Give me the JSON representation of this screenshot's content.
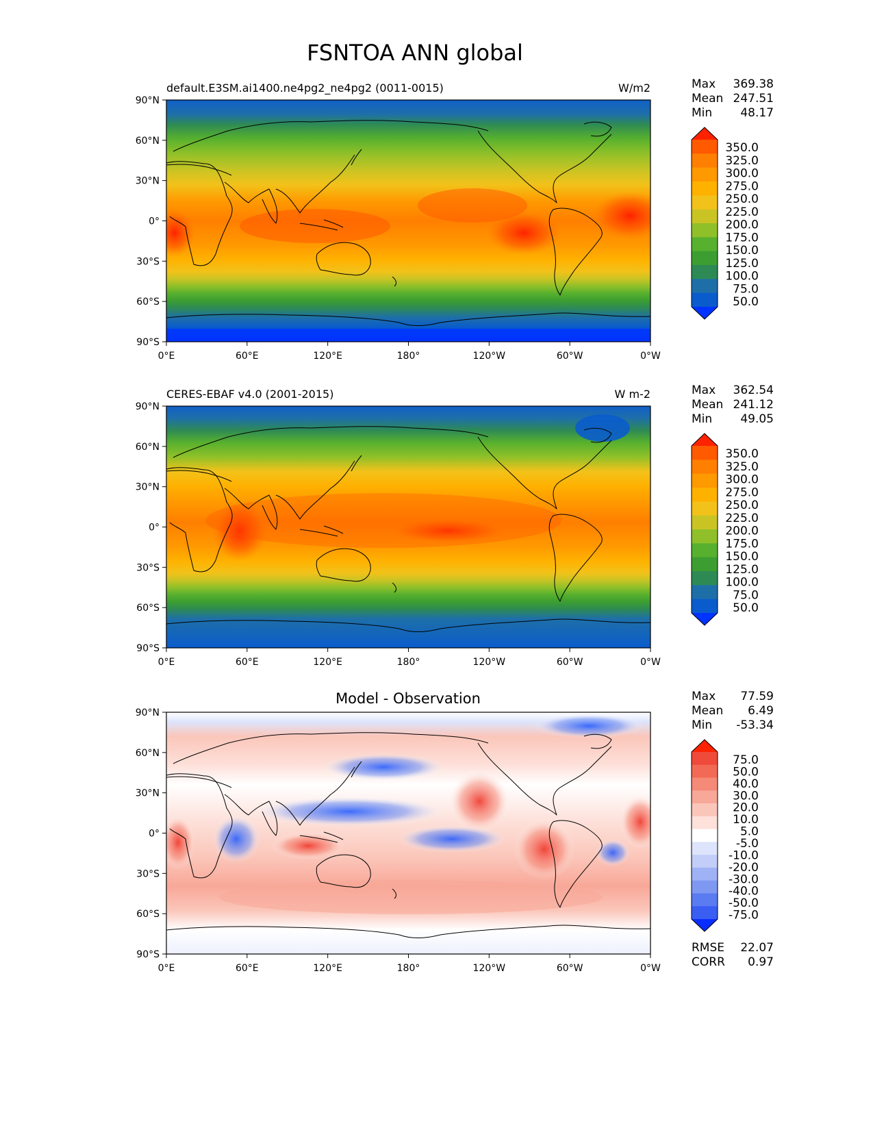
{
  "page_title": "FSNTOA ANN global",
  "chart_data": [
    {
      "type": "heatmap",
      "panel": "test",
      "title": "default.E3SM.ai1400.ne4pg2_ne4pg2 (0011-0015)",
      "units": "W/m2",
      "ytick_labels": [
        "90°N",
        "60°N",
        "30°N",
        "0°",
        "30°S",
        "60°S",
        "90°S"
      ],
      "xtick_labels": [
        "0°E",
        "60°E",
        "120°E",
        "180°",
        "120°W",
        "60°W",
        "0°W"
      ],
      "stats": [
        {
          "label": "Max",
          "value": "369.38"
        },
        {
          "label": "Mean",
          "value": "247.51"
        },
        {
          "label": "Min",
          "value": "48.17"
        }
      ],
      "colorbar": {
        "levels": [
          "350.0",
          "325.0",
          "300.0",
          "275.0",
          "250.0",
          "225.0",
          "200.0",
          "175.0",
          "150.0",
          "125.0",
          "100.0",
          "75.0",
          "50.0"
        ],
        "colors": [
          "#ff2200",
          "#ff5a00",
          "#ff7f00",
          "#ff9900",
          "#ffb100",
          "#f2c21a",
          "#c9c424",
          "#8fc029",
          "#57b02e",
          "#3c9e31",
          "#2e8a55",
          "#1e6fa8",
          "#0a5ccc",
          "#0033ff"
        ]
      }
    },
    {
      "type": "heatmap",
      "panel": "reference",
      "title": "CERES-EBAF v4.0 (2001-2015)",
      "units": "W m-2",
      "ytick_labels": [
        "90°N",
        "60°N",
        "30°N",
        "0°",
        "30°S",
        "60°S",
        "90°S"
      ],
      "xtick_labels": [
        "0°E",
        "60°E",
        "120°E",
        "180°",
        "120°W",
        "60°W",
        "0°W"
      ],
      "stats": [
        {
          "label": "Max",
          "value": "362.54"
        },
        {
          "label": "Mean",
          "value": "241.12"
        },
        {
          "label": "Min",
          "value": "49.05"
        }
      ],
      "colorbar": {
        "levels": [
          "350.0",
          "325.0",
          "300.0",
          "275.0",
          "250.0",
          "225.0",
          "200.0",
          "175.0",
          "150.0",
          "125.0",
          "100.0",
          "75.0",
          "50.0"
        ],
        "colors": [
          "#ff2200",
          "#ff5a00",
          "#ff7f00",
          "#ff9900",
          "#ffb100",
          "#f2c21a",
          "#c9c424",
          "#8fc029",
          "#57b02e",
          "#3c9e31",
          "#2e8a55",
          "#1e6fa8",
          "#0a5ccc",
          "#0033ff"
        ]
      }
    },
    {
      "type": "heatmap",
      "panel": "difference",
      "title": "Model - Observation",
      "units": "",
      "ytick_labels": [
        "90°N",
        "60°N",
        "30°N",
        "0°",
        "30°S",
        "60°S",
        "90°S"
      ],
      "xtick_labels": [
        "0°E",
        "60°E",
        "120°E",
        "180°",
        "120°W",
        "60°W",
        "0°W"
      ],
      "stats": [
        {
          "label": "Max",
          "value": "77.59"
        },
        {
          "label": "Mean",
          "value": "6.49"
        },
        {
          "label": "Min",
          "value": "-53.34"
        }
      ],
      "extra_stats": [
        {
          "label": "RMSE",
          "value": "22.07"
        },
        {
          "label": "CORR",
          "value": "0.97"
        }
      ],
      "colorbar": {
        "levels": [
          "75.0",
          "50.0",
          "40.0",
          "30.0",
          "20.0",
          "10.0",
          "5.0",
          "-5.0",
          "-10.0",
          "-20.0",
          "-30.0",
          "-40.0",
          "-50.0",
          "-75.0"
        ],
        "colors": [
          "#ff2200",
          "#f04a3a",
          "#f26a55",
          "#f58a78",
          "#f8a898",
          "#fbc6ba",
          "#fde1da",
          "#ffffff",
          "#dde4fb",
          "#c2cdf8",
          "#9fb2f5",
          "#7f98f2",
          "#5a7cf0",
          "#3a5ef2",
          "#0a2dff"
        ]
      }
    }
  ]
}
